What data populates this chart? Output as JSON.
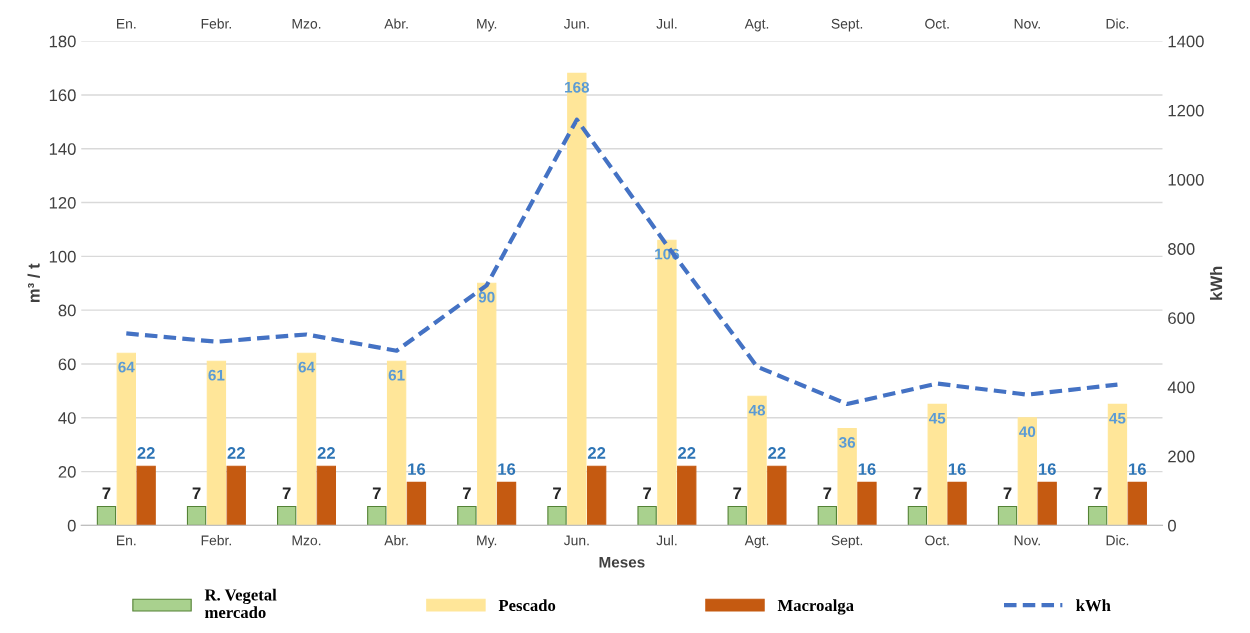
{
  "chart_data": {
    "type": "bar",
    "xlabel": "Meses",
    "ylabel": "m³ / t",
    "y2label": "kWh",
    "categories": [
      "En.",
      "Febr.",
      "Mzo.",
      "Abr.",
      "My.",
      "Jun.",
      "Jul.",
      "Agt.",
      "Sept.",
      "Oct.",
      "Nov.",
      "Dic."
    ],
    "series": [
      {
        "name": "R. Vegetal\nmercado",
        "color": "#a9d18e",
        "values": [
          7,
          7,
          7,
          7,
          7,
          7,
          7,
          7,
          7,
          7,
          7,
          7
        ],
        "value_labels": [
          "7",
          "7",
          "7",
          "7",
          "7",
          "7",
          "7",
          "7",
          "7",
          "7",
          "7",
          "7"
        ]
      },
      {
        "name": "Pescado",
        "color": "#ffe699",
        "values": [
          64,
          61,
          64,
          61,
          90,
          168,
          106,
          48,
          36,
          45,
          40,
          45
        ],
        "value_labels": [
          "64",
          "61",
          "64",
          "61",
          "90",
          "168",
          "106",
          "48",
          "36",
          "45",
          "40",
          "45"
        ]
      },
      {
        "name": "Macroalga",
        "color": "#c55a11",
        "values": [
          22,
          22,
          22,
          16,
          16,
          22,
          22,
          22,
          16,
          16,
          16,
          16
        ],
        "value_labels": [
          "22",
          "22",
          "22",
          "16",
          "16",
          "22",
          "22",
          "22",
          "16",
          "16",
          "16",
          "16"
        ]
      },
      {
        "name": "kWh",
        "type": "line",
        "axis": "y2",
        "color": "#4472c4",
        "line_style": "dashed",
        "marker": "none",
        "values": [
          555,
          531,
          552,
          505,
          694,
          1173,
          810,
          459,
          351,
          410,
          378,
          407
        ]
      }
    ],
    "ylim": [
      0,
      180
    ],
    "yticks": [
      0,
      20,
      40,
      60,
      80,
      100,
      120,
      140,
      160,
      180
    ],
    "y2lim": [
      0,
      1400
    ],
    "y2ticks": [
      0,
      200,
      400,
      600,
      800,
      1000,
      1200,
      1400
    ],
    "grid": "y",
    "legend": "bottom"
  }
}
